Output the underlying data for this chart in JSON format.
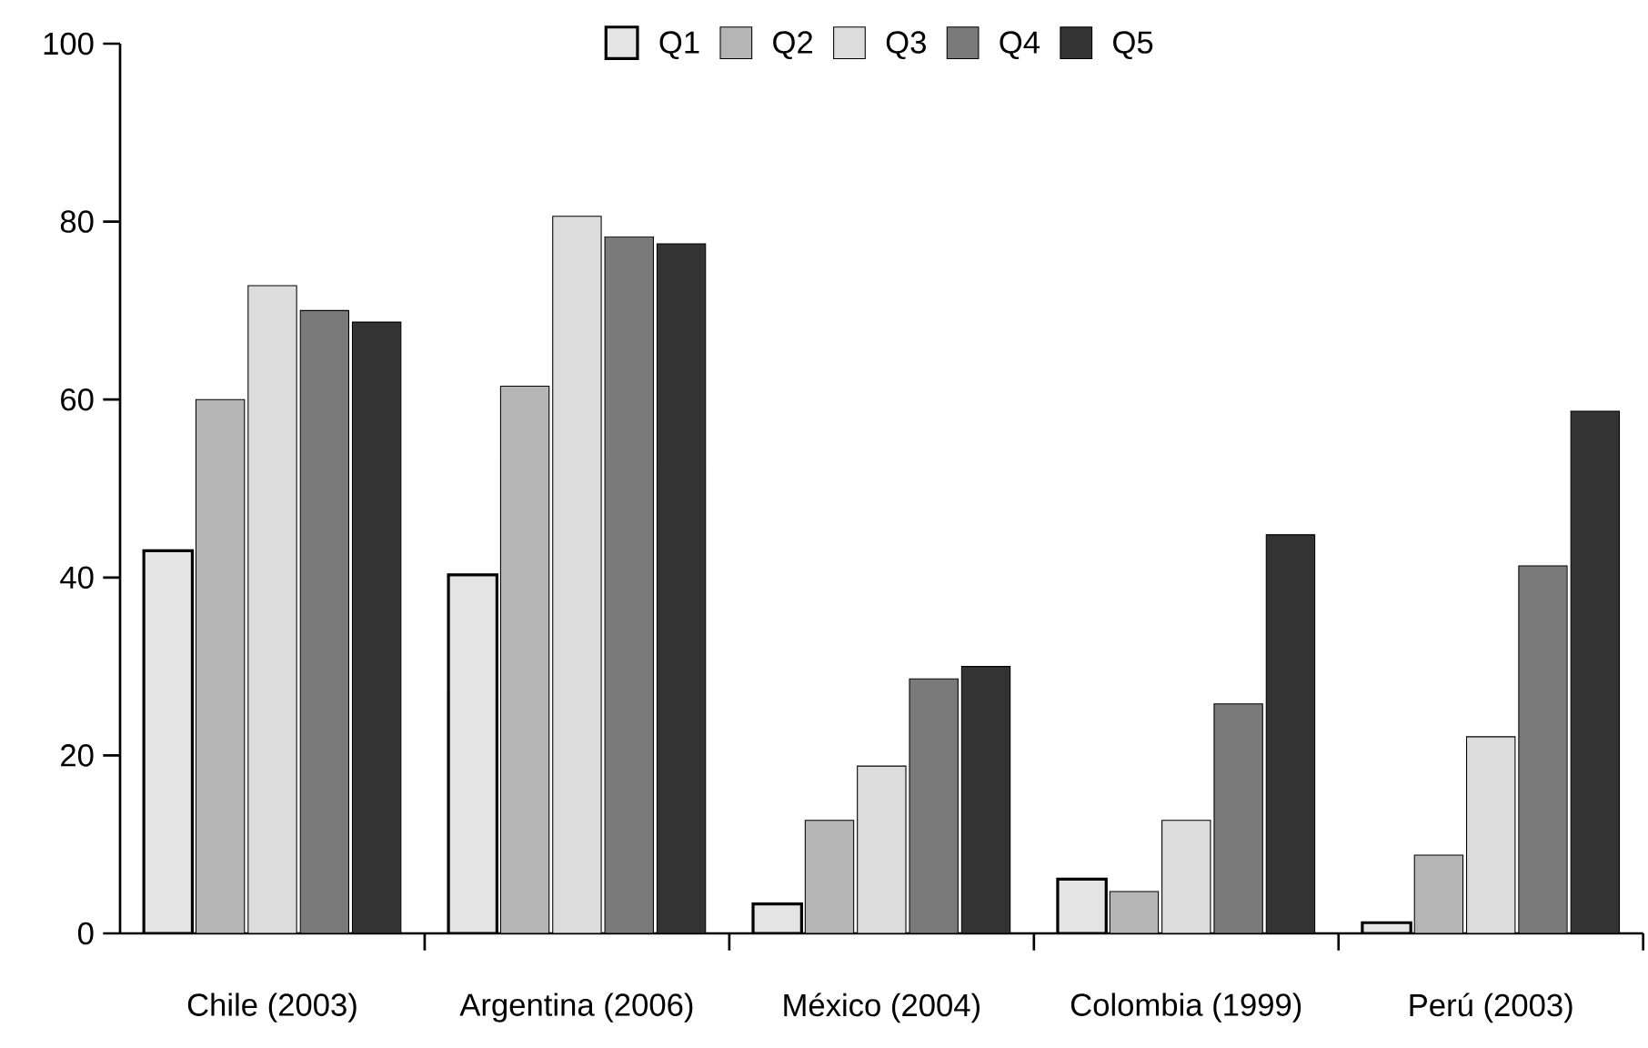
{
  "chart_data": {
    "type": "bar",
    "categories": [
      "Chile (2003)",
      "Argentina (2006)",
      "México (2004)",
      "Colombia (1999)",
      "Perú (2003)"
    ],
    "series": [
      {
        "name": "Q1",
        "color": "#e4e4e4",
        "values": [
          43,
          40.3,
          3.3,
          6.1,
          1.2
        ]
      },
      {
        "name": "Q2",
        "color": "#b5b5b5",
        "values": [
          60,
          61.5,
          12.7,
          4.7,
          8.8
        ]
      },
      {
        "name": "Q3",
        "color": "#dcdcdc",
        "values": [
          72.8,
          80.6,
          18.8,
          12.7,
          22.1
        ]
      },
      {
        "name": "Q4",
        "color": "#7a7a7a",
        "values": [
          70,
          78.3,
          28.6,
          25.8,
          41.3
        ]
      },
      {
        "name": "Q5",
        "color": "#333333",
        "values": [
          68.7,
          77.5,
          30,
          44.8,
          58.7
        ]
      }
    ],
    "ylim": [
      0,
      100
    ],
    "yticks": [
      0,
      20,
      40,
      60,
      80,
      100
    ],
    "legend": "top",
    "grid": false
  }
}
